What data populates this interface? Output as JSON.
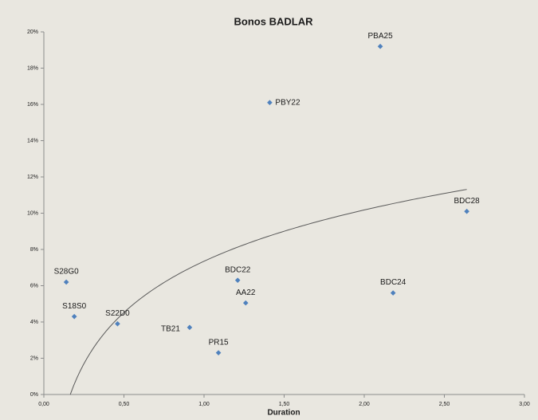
{
  "chart_data": {
    "type": "scatter",
    "title": "Bonos BADLAR",
    "x_label": "Duration",
    "color": "#4f81bd",
    "x": [
      2.1,
      1.41,
      2.64,
      0.14,
      1.21,
      2.18,
      1.26,
      0.19,
      0.46,
      0.91,
      1.09
    ],
    "values": [
      19.2,
      16.1,
      10.1,
      6.2,
      6.3,
      5.6,
      5.05,
      4.3,
      3.9,
      3.7,
      2.3
    ],
    "labels": [
      "PBA25",
      "PBY22",
      "BDC28",
      "S28G0",
      "BDC22",
      "BDC24",
      "AA22",
      "S18S0",
      "S22D0",
      "TB21",
      "PR15"
    ],
    "trendline": {
      "type": "log",
      "a": 7.35,
      "b": 4.08,
      "xrange": [
        0.165,
        2.64
      ],
      "color": "#595959"
    },
    "xlim": [
      0,
      3
    ],
    "xticks": [
      {
        "value": 0,
        "label": "0,00"
      },
      {
        "value": 0.5,
        "label": "0,50"
      },
      {
        "value": 1,
        "label": "1,00"
      },
      {
        "value": 1.5,
        "label": "1,50"
      },
      {
        "value": 2,
        "label": "2,00"
      },
      {
        "value": 2.5,
        "label": "2,50"
      },
      {
        "value": 3,
        "label": "3,00"
      }
    ],
    "ylim": [
      0,
      20
    ],
    "yticks": [
      {
        "value": 0,
        "label": "0%"
      },
      {
        "value": 2,
        "label": "2%"
      },
      {
        "value": 4,
        "label": "4%"
      },
      {
        "value": 6,
        "label": "6%"
      },
      {
        "value": 8,
        "label": "8%"
      },
      {
        "value": 10,
        "label": "10%"
      },
      {
        "value": 12,
        "label": "12%"
      },
      {
        "value": 14,
        "label": "14%"
      },
      {
        "value": 16,
        "label": "16%"
      },
      {
        "value": 18,
        "label": "18%"
      },
      {
        "value": 20,
        "label": "20%"
      }
    ],
    "grid": false
  }
}
